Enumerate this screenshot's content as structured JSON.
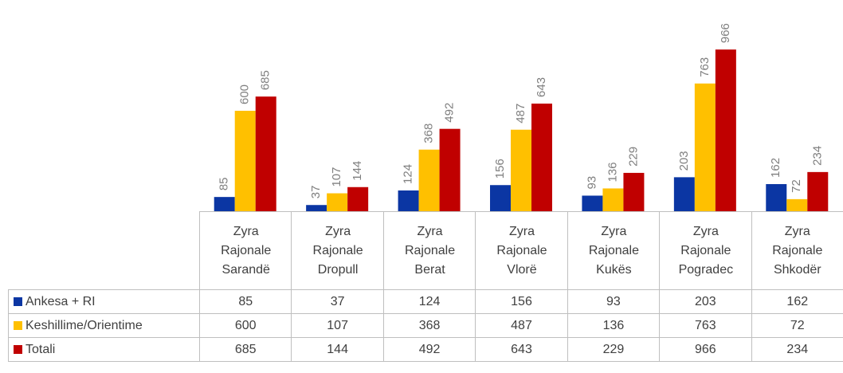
{
  "chart_data": {
    "type": "bar",
    "categories": [
      "Zyra Rajonale Sarandë",
      "Zyra Rajonale Dropull",
      "Zyra Rajonale Berat",
      "Zyra Rajonale Vlorë",
      "Zyra Rajonale Kukës",
      "Zyra Rajonale Pogradec",
      "Zyra Rajonale Shkodër"
    ],
    "series": [
      {
        "name": "Ankesa + RI",
        "color": "#0b36a3",
        "values": [
          85,
          37,
          124,
          156,
          93,
          203,
          162
        ]
      },
      {
        "name": "Keshillime/Orientime",
        "color": "#ffc000",
        "values": [
          600,
          107,
          368,
          487,
          136,
          763,
          72
        ]
      },
      {
        "name": "Totali",
        "color": "#c00000",
        "values": [
          685,
          144,
          492,
          643,
          229,
          966,
          234
        ]
      }
    ],
    "ylim": [
      0,
      1000
    ]
  }
}
